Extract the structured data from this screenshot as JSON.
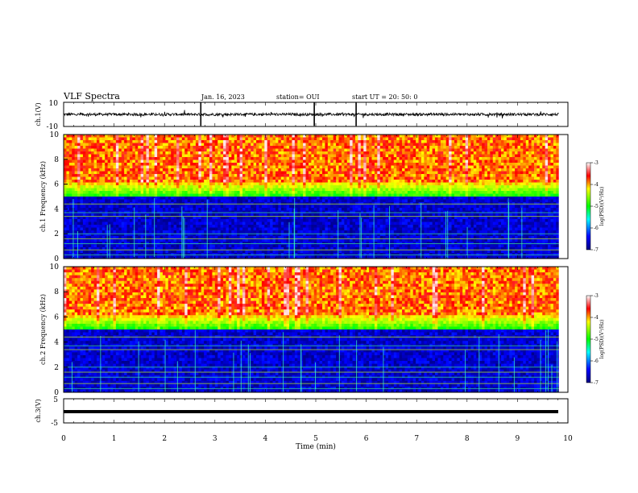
{
  "header": {
    "title": "VLF Spectra",
    "date": "Jan. 16, 2023",
    "station": "station= OUI",
    "start": "start UT =  20: 50: 0"
  },
  "chart_data": [
    {
      "type": "line",
      "panel": "ch1-waveform",
      "ylabel": "ch.1(V)",
      "yticks": [
        "10",
        "-10"
      ],
      "ylim": [
        -10,
        10
      ],
      "xlim": [
        0,
        10
      ],
      "description_values": "noisy trace centered near 0 V with occasional spikes",
      "spikes_min": [
        2.72,
        4.97,
        5.8
      ]
    },
    {
      "type": "heatmap",
      "panel": "ch1-spectrogram",
      "ylabel": "ch.1 Frequency (kHz)",
      "ylim": [
        0,
        10
      ],
      "yticks": [
        "0",
        "2",
        "4",
        "6",
        "8",
        "10"
      ],
      "colorbar": {
        "label": "log(PSD)(V²/Hz)",
        "ticks": [
          "-3",
          "-4",
          "-5",
          "-6",
          "-7"
        ],
        "range": [
          -7,
          -3
        ]
      }
    },
    {
      "type": "heatmap",
      "panel": "ch2-spectrogram",
      "ylabel": "ch.2 Frequency (kHz)",
      "ylim": [
        0,
        10
      ],
      "yticks": [
        "0",
        "2",
        "4",
        "6",
        "8",
        "10"
      ],
      "colorbar": {
        "label": "log(PSD)(V²/Hz)",
        "ticks": [
          "-3",
          "-4",
          "-5",
          "-6",
          "-7"
        ],
        "range": [
          -7,
          -3
        ]
      }
    },
    {
      "type": "line",
      "panel": "ch3-waveform",
      "ylabel": "ch.3(V)",
      "yticks": [
        "5",
        "-5"
      ],
      "ylim": [
        -5,
        5
      ],
      "constant_value": -1.5
    }
  ],
  "xaxis": {
    "label": "Time (min)",
    "ticks": [
      "0",
      "1",
      "2",
      "3",
      "4",
      "5",
      "6",
      "7",
      "8",
      "9",
      "10"
    ],
    "xlim": [
      0,
      10
    ]
  }
}
